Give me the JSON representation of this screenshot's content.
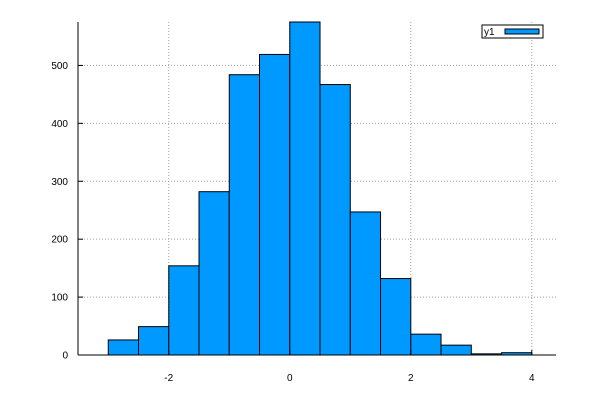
{
  "chart_data": {
    "type": "bar",
    "bin_edges": [
      -3,
      -2.5,
      -2,
      -1.5,
      -1,
      -0.5,
      0,
      0.5,
      1,
      1.5,
      2,
      2.5,
      3,
      3.5,
      4
    ],
    "series": [
      {
        "name": "y1",
        "values": [
          26,
          49,
          154,
          282,
          484,
          519,
          575,
          467,
          247,
          132,
          36,
          17,
          2,
          4
        ],
        "color": "#0099ff"
      }
    ],
    "xlim": [
      -3.5,
      4.4
    ],
    "ylim": [
      0,
      575
    ],
    "xticks": [
      -2,
      0,
      2,
      4
    ],
    "yticks": [
      0,
      100,
      200,
      300,
      400,
      500
    ],
    "grid": true,
    "legend_position": "top-right",
    "title": "",
    "xlabel": "",
    "ylabel": ""
  }
}
